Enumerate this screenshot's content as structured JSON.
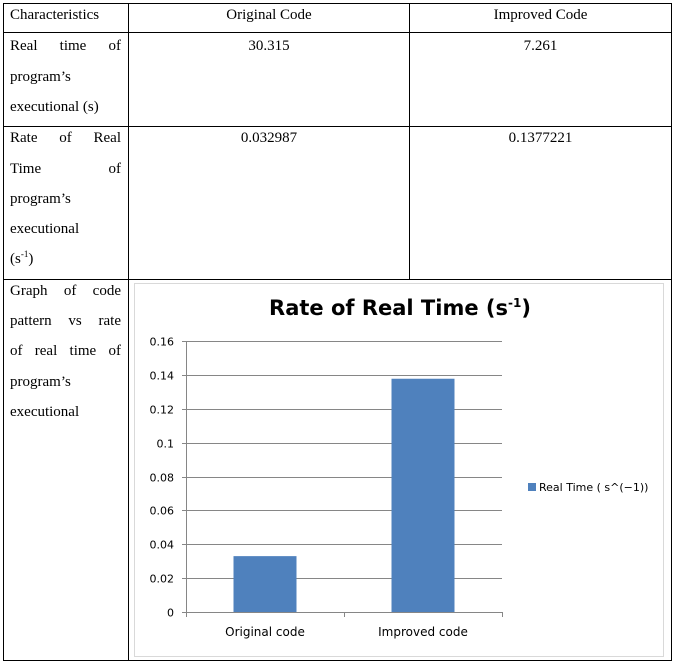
{
  "table": {
    "headers": [
      "Characteristics",
      "Original Code",
      "Improved Code"
    ],
    "rows": [
      {
        "label_lines": [
          "Real time of",
          "program’s",
          "executional (s)"
        ],
        "original": "30.315",
        "improved": "7.261"
      },
      {
        "label_lines": [
          "Rate of Real",
          "Time of",
          "program’s",
          "executional"
        ],
        "label_unit": "(s",
        "label_unit_sup": "-1",
        "label_unit_close": ")",
        "original": "0.032987",
        "improved": "0.1377221"
      },
      {
        "label_lines": [
          "Graph of code",
          "pattern vs rate",
          "of real time of",
          "program’s",
          "executional"
        ]
      }
    ]
  },
  "chart_data": {
    "type": "bar",
    "title": "Rate of Real Time (s",
    "title_sup": "-1",
    "title_close": ")",
    "categories": [
      "Original code",
      "Improved code"
    ],
    "series": [
      {
        "name": "Real Time ( s^(−1))",
        "values": [
          0.032987,
          0.1377221
        ]
      }
    ],
    "ylim": [
      0,
      0.16
    ],
    "yticks": [
      "0",
      "0.02",
      "0.04",
      "0.06",
      "0.08",
      "0.1",
      "0.12",
      "0.14",
      "0.16"
    ],
    "grid": true,
    "legend": "right",
    "color": "#4f81bd"
  }
}
